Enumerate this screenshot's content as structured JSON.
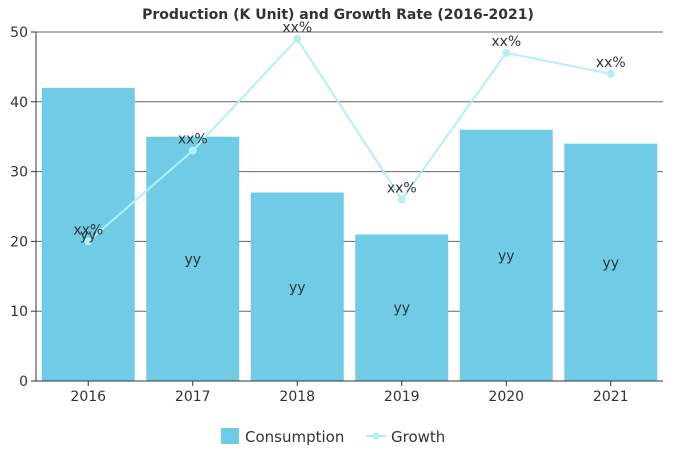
{
  "chart_data": {
    "type": "bar",
    "title": "Production (K Unit) and Growth Rate (2016-2021)",
    "categories": [
      "2016",
      "2017",
      "2018",
      "2019",
      "2020",
      "2021"
    ],
    "ylim": [
      0,
      50
    ],
    "yticks": [
      0,
      10,
      20,
      30,
      40,
      50
    ],
    "grid": true,
    "legend_position": "bottom",
    "series": [
      {
        "name": "Consumption",
        "type": "bar",
        "color": "#70cce6",
        "values": [
          42,
          35,
          27,
          21,
          36,
          34
        ],
        "labels": [
          "yy",
          "yy",
          "yy",
          "yy",
          "yy",
          "yy"
        ]
      },
      {
        "name": "Growth",
        "type": "line",
        "color": "#b4eef6",
        "values": [
          20,
          33,
          49,
          26,
          47,
          44
        ],
        "labels": [
          "xx%",
          "xx%",
          "xx%",
          "xx%",
          "xx%",
          "xx%"
        ]
      }
    ]
  }
}
